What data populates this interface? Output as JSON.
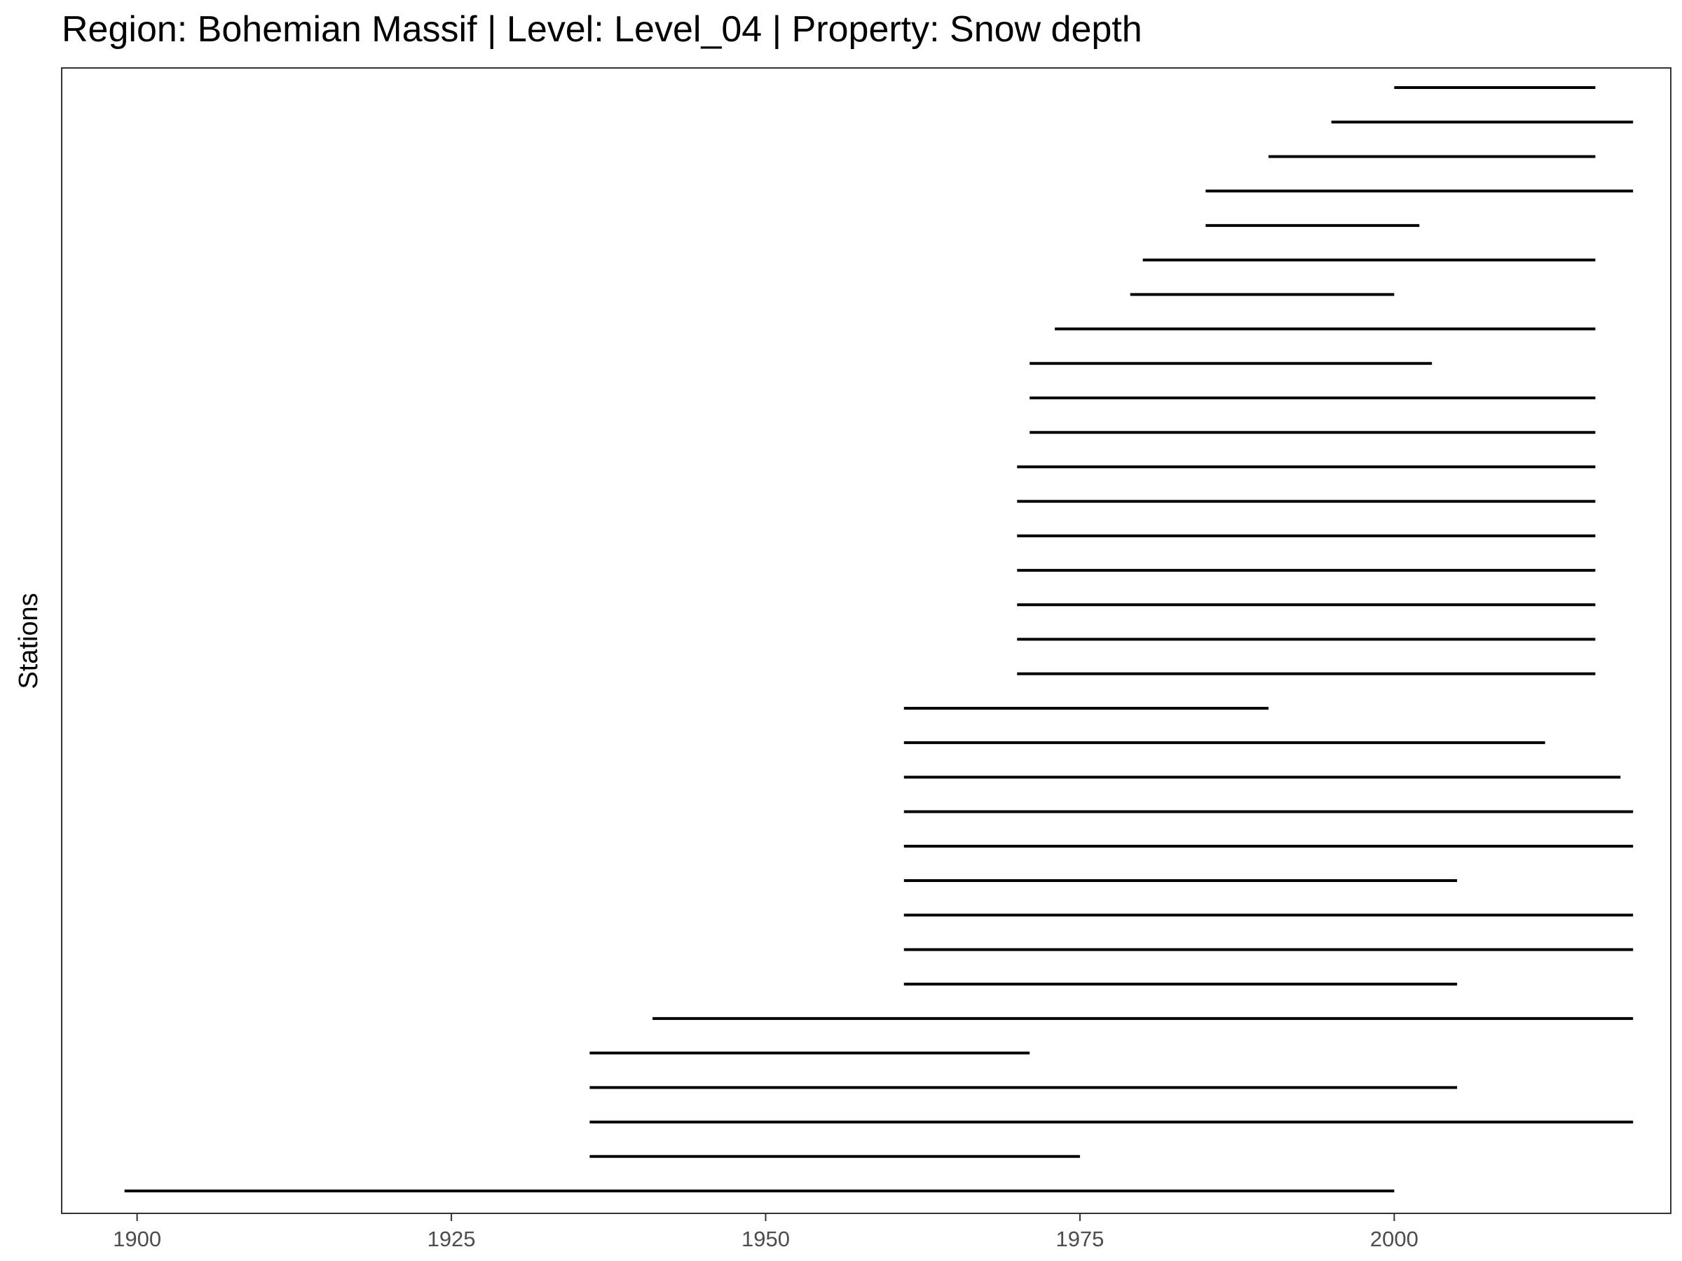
{
  "chart_data": {
    "type": "gantt",
    "title": "Region: Bohemian Massif | Level: Level_04 | Property: Snow depth",
    "xlabel": "",
    "ylabel": "Stations",
    "xlim": [
      1894,
      2022
    ],
    "xticks": [
      1900,
      1925,
      1950,
      1975,
      2000
    ],
    "grid": false,
    "legend": "none",
    "line_color": "#000000",
    "panel_border_color": "#333333",
    "tick_label_color": "#4d4d4d",
    "segments": [
      {
        "start": 1899,
        "end": 2000
      },
      {
        "start": 1936,
        "end": 1975
      },
      {
        "start": 1936,
        "end": 2019
      },
      {
        "start": 1936,
        "end": 2005
      },
      {
        "start": 1936,
        "end": 1971
      },
      {
        "start": 1941,
        "end": 2019
      },
      {
        "start": 1961,
        "end": 2005
      },
      {
        "start": 1961,
        "end": 2019
      },
      {
        "start": 1961,
        "end": 2019
      },
      {
        "start": 1961,
        "end": 2005
      },
      {
        "start": 1961,
        "end": 2019
      },
      {
        "start": 1961,
        "end": 2019
      },
      {
        "start": 1961,
        "end": 2018
      },
      {
        "start": 1961,
        "end": 2012
      },
      {
        "start": 1961,
        "end": 1990
      },
      {
        "start": 1970,
        "end": 2016
      },
      {
        "start": 1970,
        "end": 2016
      },
      {
        "start": 1970,
        "end": 2016
      },
      {
        "start": 1970,
        "end": 2016
      },
      {
        "start": 1970,
        "end": 2016
      },
      {
        "start": 1970,
        "end": 2016
      },
      {
        "start": 1970,
        "end": 2016
      },
      {
        "start": 1971,
        "end": 2016
      },
      {
        "start": 1971,
        "end": 2016
      },
      {
        "start": 1971,
        "end": 2003
      },
      {
        "start": 1973,
        "end": 2016
      },
      {
        "start": 1979,
        "end": 2000
      },
      {
        "start": 1980,
        "end": 2016
      },
      {
        "start": 1985,
        "end": 2002
      },
      {
        "start": 1985,
        "end": 2019
      },
      {
        "start": 1990,
        "end": 2016
      },
      {
        "start": 1995,
        "end": 2019
      },
      {
        "start": 2000,
        "end": 2016
      }
    ]
  }
}
